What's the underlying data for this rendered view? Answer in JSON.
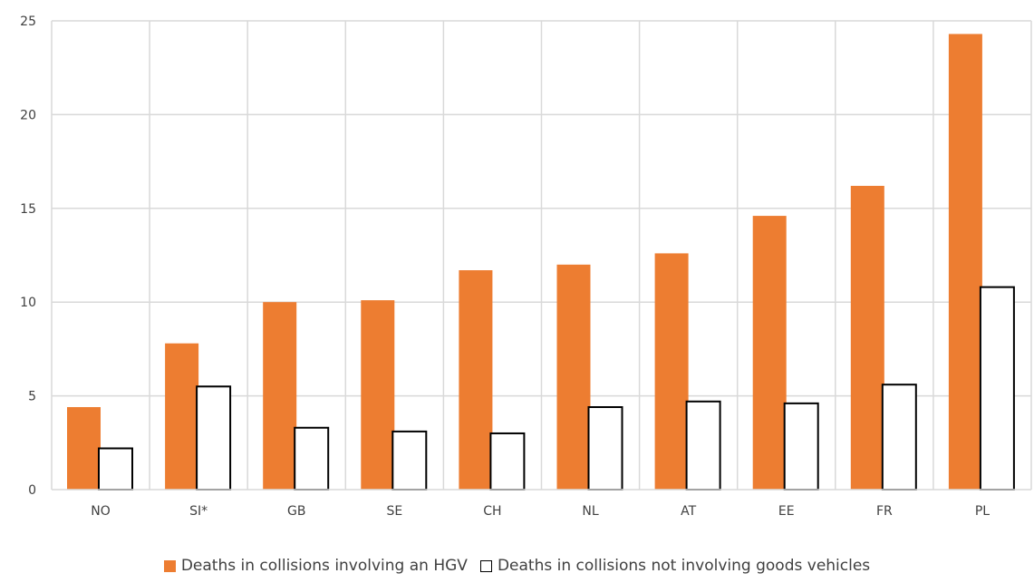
{
  "chart_data": {
    "type": "bar",
    "categories": [
      "NO",
      "SI*",
      "GB",
      "SE",
      "CH",
      "NL",
      "AT",
      "EE",
      "FR",
      "PL"
    ],
    "series": [
      {
        "name": "Deaths in collisions involving an HGV",
        "values": [
          4.4,
          7.8,
          10.0,
          10.1,
          11.7,
          12.0,
          12.6,
          14.6,
          16.2,
          24.3
        ],
        "color": "#ED7D31"
      },
      {
        "name": "Deaths in collisions not involving goods vehicles",
        "values": [
          2.2,
          5.5,
          3.3,
          3.1,
          3.0,
          4.4,
          4.7,
          4.6,
          5.6,
          10.8
        ],
        "color": "#FFFFFF",
        "stroke": "#000000"
      }
    ],
    "ylim": [
      0,
      25
    ],
    "yticks": [
      0,
      5,
      10,
      15,
      20,
      25
    ],
    "grid": true,
    "legend_position": "bottom"
  }
}
